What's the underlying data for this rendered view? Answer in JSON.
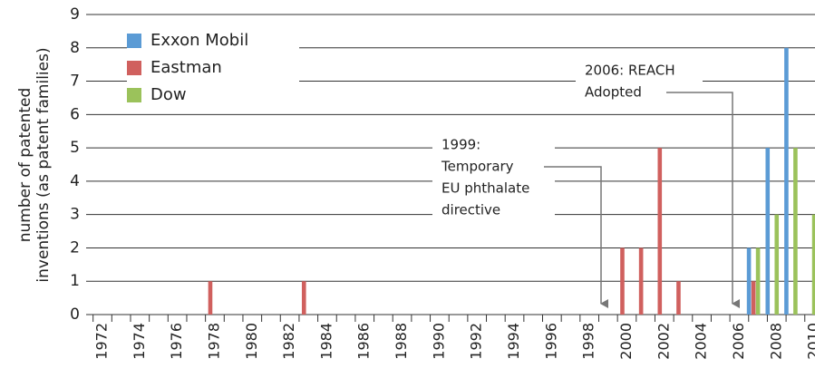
{
  "chart_data": {
    "type": "bar",
    "ylabel": [
      "number of patented",
      "inventions (as patent families)"
    ],
    "categories": [
      "1972",
      null,
      "1974",
      null,
      "1976",
      null,
      "1978",
      null,
      "1980",
      null,
      "1982",
      null,
      "1984",
      null,
      "1986",
      null,
      "1988",
      null,
      "1990",
      null,
      "1992",
      null,
      "1994",
      null,
      "1996",
      null,
      "1998",
      null,
      "2000",
      null,
      "2002",
      null,
      "2004",
      null,
      "2006",
      null,
      "2008",
      null,
      "2010"
    ],
    "series": [
      {
        "name": "Exxon Mobil",
        "color": "#5b9bd5",
        "values": [
          0,
          0,
          0,
          0,
          0,
          0,
          0,
          0,
          0,
          0,
          0,
          0,
          0,
          0,
          0,
          0,
          0,
          0,
          0,
          0,
          0,
          0,
          0,
          0,
          0,
          0,
          0,
          0,
          0,
          0,
          0,
          0,
          0,
          0,
          0,
          2,
          5,
          8,
          0
        ]
      },
      {
        "name": "Eastman",
        "color": "#d0605e",
        "values": [
          0,
          0,
          0,
          0,
          0,
          0,
          1,
          0,
          0,
          0,
          0,
          1,
          0,
          0,
          0,
          0,
          0,
          0,
          0,
          0,
          0,
          0,
          0,
          0,
          0,
          0,
          0,
          0,
          2,
          2,
          5,
          1,
          0,
          0,
          0,
          1,
          0,
          0,
          0
        ]
      },
      {
        "name": "Dow",
        "color": "#9bc25b",
        "values": [
          0,
          0,
          0,
          0,
          0,
          0,
          0,
          0,
          0,
          0,
          0,
          0,
          0,
          0,
          0,
          0,
          0,
          0,
          0,
          0,
          0,
          0,
          0,
          0,
          0,
          0,
          0,
          0,
          0,
          0,
          0,
          0,
          0,
          0,
          0,
          2,
          3,
          5,
          3
        ]
      }
    ],
    "ylim": [
      0,
      9
    ],
    "yticks": [
      0,
      1,
      2,
      3,
      4,
      5,
      6,
      7,
      8,
      9
    ],
    "grid": true,
    "annotations": [
      {
        "lines": [
          "1999:",
          "Temporary",
          "EU phthalate",
          "directive"
        ]
      },
      {
        "lines": [
          "2006: REACH",
          "Adopted"
        ]
      }
    ]
  }
}
